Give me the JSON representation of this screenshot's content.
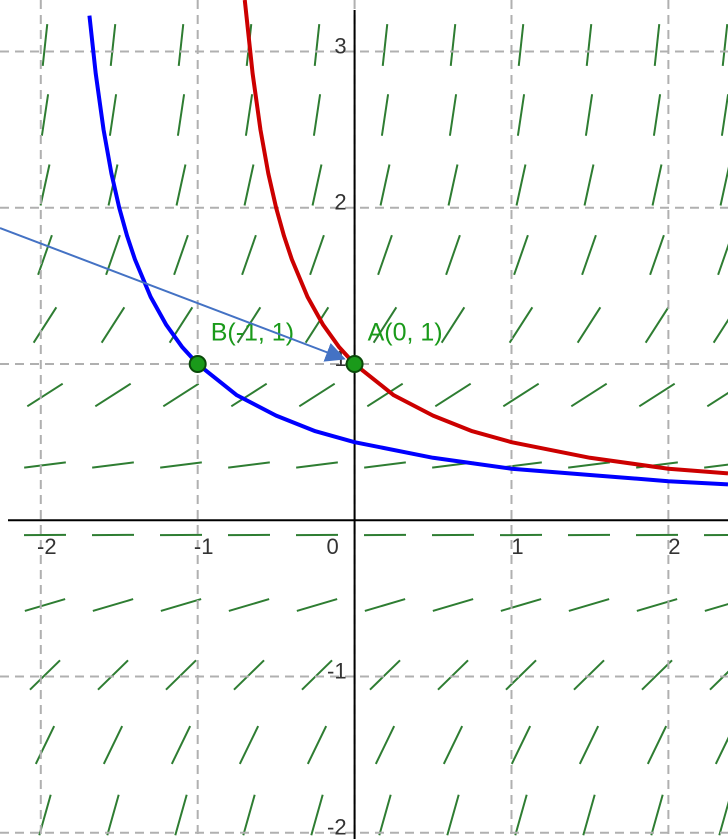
{
  "chart_data": {
    "type": "line",
    "xlim": [
      -2.26,
      2.38
    ],
    "ylim": [
      -2.04,
      3.33
    ],
    "xticks": [
      -2,
      -1,
      0,
      1,
      2
    ],
    "yticks": [
      -2,
      -1,
      1,
      2,
      3
    ],
    "grid": true,
    "series": [
      {
        "color": "#cc0000",
        "x": [
          -0.7,
          -0.65,
          -0.6,
          -0.55,
          -0.5,
          -0.45,
          -0.4,
          -0.3,
          -0.2,
          -0.1,
          0,
          0.25,
          0.5,
          0.75,
          1,
          1.5,
          2,
          2.38
        ],
        "values": [
          3.33,
          2.86,
          2.5,
          2.22,
          2,
          1.82,
          1.67,
          1.43,
          1.25,
          1.11,
          1,
          0.8,
          0.67,
          0.57,
          0.5,
          0.4,
          0.33,
          0.3
        ]
      },
      {
        "color": "#0000ff",
        "x": [
          -1.69,
          -1.65,
          -1.6,
          -1.55,
          -1.5,
          -1.45,
          -1.4,
          -1.3,
          -1.2,
          -1.1,
          -1,
          -0.75,
          -0.5,
          -0.25,
          0,
          0.5,
          1,
          1.5,
          2,
          2.38
        ],
        "values": [
          3.23,
          2.86,
          2.5,
          2.22,
          2,
          1.82,
          1.67,
          1.43,
          1.25,
          1.11,
          1,
          0.8,
          0.67,
          0.57,
          0.5,
          0.4,
          0.33,
          0.29,
          0.25,
          0.23
        ]
      }
    ],
    "points": [
      {
        "label": "A(0, 1)",
        "x": 0,
        "y": 1,
        "color": "#1a9a1a"
      },
      {
        "label": "B(-1, 1)",
        "x": -1,
        "y": 1,
        "color": "#1a9a1a"
      }
    ]
  }
}
